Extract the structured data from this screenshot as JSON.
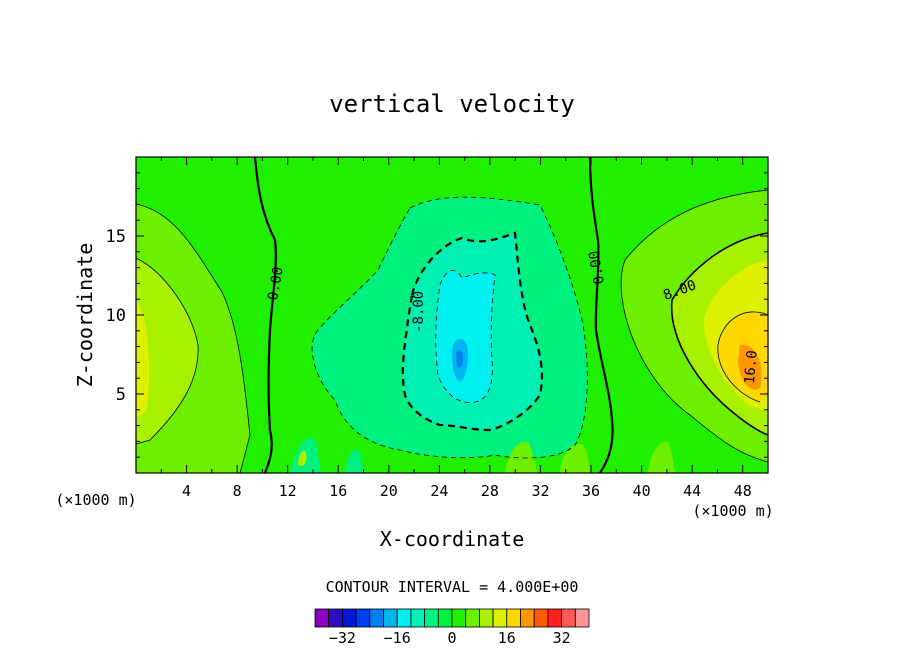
{
  "chart_data": {
    "type": "heatmap",
    "title": "vertical velocity",
    "xlabel": "X-coordinate",
    "ylabel": "Z-coordinate",
    "x_unit": "(×1000 m)",
    "z_unit": "(×1000 m)",
    "xlim": [
      0,
      50
    ],
    "ylim": [
      0,
      20
    ],
    "x_ticks": [
      "4",
      "8",
      "12",
      "16",
      "20",
      "24",
      "28",
      "32",
      "36",
      "40",
      "44",
      "48"
    ],
    "y_ticks": [
      "5",
      "10",
      "15"
    ],
    "contour_interval_text": "CONTOUR INTERVAL = 4.000E+00",
    "contour_labels": [
      {
        "text": "0.00",
        "x": 11,
        "z": 12,
        "rotate": -80
      },
      {
        "text": "-8.00",
        "x": 22.3,
        "z": 10.2,
        "rotate": -90
      },
      {
        "text": "0.00",
        "x": 36.4,
        "z": 13,
        "rotate": -100
      },
      {
        "text": "8.00",
        "x": 43,
        "z": 11.6,
        "rotate": -20
      },
      {
        "text": "16.0",
        "x": 48.6,
        "z": 6.7,
        "rotate": -85
      }
    ],
    "features": [
      {
        "name": "central downdraft core",
        "x": 25.5,
        "z": 7.3,
        "w_min": -20
      },
      {
        "name": "right updraft core",
        "x": 47.5,
        "z": 6.8,
        "w_max": 20
      },
      {
        "name": "left updraft region",
        "x": 0.5,
        "z": 7.5,
        "w_max": 10
      }
    ],
    "colorbar": {
      "levels": [
        -36,
        -32,
        -28,
        -24,
        -20,
        -16,
        -12,
        -8,
        -4,
        0,
        4,
        8,
        12,
        16,
        20,
        24,
        28,
        32,
        36
      ],
      "colors": [
        "#8c00c0",
        "#2a10b8",
        "#0018d8",
        "#0040f0",
        "#0080f0",
        "#00b4f0",
        "#00f0f0",
        "#00f0b4",
        "#00f080",
        "#00f040",
        "#20f000",
        "#6cf000",
        "#a8f000",
        "#dcf000",
        "#ffd800",
        "#ff9800",
        "#ff5a00",
        "#ff2020",
        "#ff5a5a",
        "#ff9494"
      ],
      "tick_labels": [
        "-32",
        "-16",
        "0",
        "16",
        "32"
      ],
      "tick_values": [
        -32,
        -16,
        0,
        16,
        32
      ]
    }
  }
}
